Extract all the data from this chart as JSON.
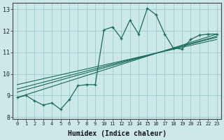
{
  "xlabel": "Humidex (Indice chaleur)",
  "bg_color": "#cce8e8",
  "grid_color": "#99cccc",
  "line_color": "#1a6b5a",
  "xlim": [
    -0.5,
    23.5
  ],
  "ylim": [
    7.9,
    13.3
  ],
  "yticks": [
    8,
    9,
    10,
    11,
    12,
    13
  ],
  "xticks": [
    0,
    1,
    2,
    3,
    4,
    5,
    6,
    7,
    8,
    9,
    10,
    11,
    12,
    13,
    14,
    15,
    16,
    17,
    18,
    19,
    20,
    21,
    22,
    23
  ],
  "main_series": [
    8.9,
    9.0,
    8.75,
    8.55,
    8.65,
    8.35,
    8.8,
    9.45,
    9.5,
    9.5,
    12.05,
    12.18,
    11.65,
    12.5,
    11.85,
    13.05,
    12.75,
    11.85,
    11.2,
    11.15,
    11.6,
    11.8,
    11.85,
    11.85
  ],
  "trend_lines": [
    {
      "x0": 0,
      "y0": 8.9,
      "x1": 23,
      "y1": 11.85
    },
    {
      "x0": 0,
      "y0": 9.15,
      "x1": 23,
      "y1": 11.75
    },
    {
      "x0": 0,
      "y0": 9.3,
      "x1": 23,
      "y1": 11.7
    },
    {
      "x0": 0,
      "y0": 9.5,
      "x1": 23,
      "y1": 11.6
    }
  ]
}
